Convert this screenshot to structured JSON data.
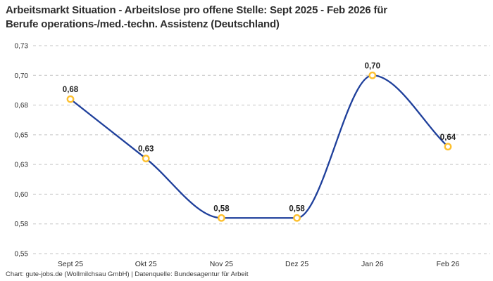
{
  "header": {
    "title_line1": "Arbeitsmarkt Situation - Arbeitslose pro offene Stelle: Sept 2025 - Feb 2026 für",
    "title_line2": "Berufe operations-/med.-techn. Assistenz (Deutschland)"
  },
  "footer": {
    "credit": "Chart: gute-jobs.de (Wollmilchsau GmbH) | Datenquelle: Bundesagentur für Arbeit"
  },
  "chart_data": {
    "type": "line",
    "title": "Arbeitsmarkt Situation - Arbeitslose pro offene Stelle: Sept 2025 - Feb 2026 für Berufe operations-/med.-techn. Assistenz (Deutschland)",
    "categories": [
      "Sept 25",
      "Okt 25",
      "Nov 25",
      "Dez 25",
      "Jan 26",
      "Feb 26"
    ],
    "series": [
      {
        "name": "Arbeitslose pro offene Stelle",
        "values": [
          0.68,
          0.63,
          0.58,
          0.58,
          0.7,
          0.64
        ],
        "point_labels": [
          "0,68",
          "0,63",
          "0,58",
          "0,58",
          "0,70",
          "0,64"
        ]
      }
    ],
    "xlabel": "",
    "ylabel": "",
    "ylim": [
      0.55,
      0.725
    ],
    "yticks": [
      {
        "value": 0.725,
        "label": "0,73"
      },
      {
        "value": 0.7,
        "label": "0,70"
      },
      {
        "value": 0.675,
        "label": "0,68"
      },
      {
        "value": 0.65,
        "label": "0,65"
      },
      {
        "value": 0.625,
        "label": "0,63"
      },
      {
        "value": 0.6,
        "label": "0,60"
      },
      {
        "value": 0.575,
        "label": "0,58"
      },
      {
        "value": 0.55,
        "label": "0,55"
      }
    ],
    "grid": "horizontal-dashed",
    "legend": "none",
    "curve": "smooth-monotone",
    "colors": {
      "line": "#1e3f9b",
      "marker_ring": "#fdc02f",
      "marker_fill": "#ffffff",
      "gridline": "#c3c3c3",
      "tick_text": "#2b2b2b",
      "point_label_text": "#1f1f1f"
    }
  }
}
